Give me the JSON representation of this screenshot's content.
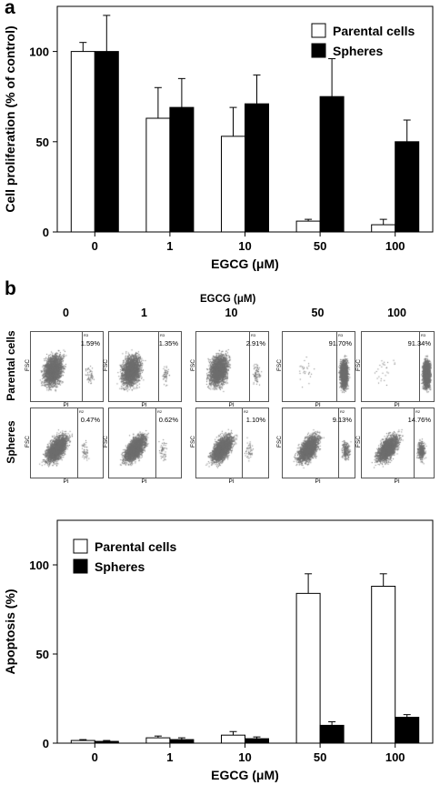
{
  "panels": {
    "a": "a",
    "b": "b"
  },
  "chart_data": [
    {
      "type": "bar",
      "panel": "a",
      "categories": [
        "0",
        "1",
        "10",
        "50",
        "100"
      ],
      "series": [
        {
          "name": "Parental cells",
          "values": [
            100,
            63,
            53,
            6,
            4
          ],
          "errors": [
            5,
            17,
            16,
            1,
            3
          ],
          "color": "#ffffff"
        },
        {
          "name": "Spheres",
          "values": [
            100,
            69,
            71,
            75,
            50
          ],
          "errors": [
            20,
            16,
            16,
            21,
            12
          ],
          "color": "#000000"
        }
      ],
      "xlabel": "EGCG (μM)",
      "ylabel": "Cell proliferation (% of control)",
      "ylim": [
        0,
        125
      ],
      "yticks": [
        "0",
        "50",
        "100"
      ],
      "legend": "top-right",
      "grid": false
    },
    {
      "type": "bar",
      "panel": "b-lower",
      "categories": [
        "0",
        "1",
        "10",
        "50",
        "100"
      ],
      "series": [
        {
          "name": "Parental cells",
          "values": [
            1.5,
            3,
            4.5,
            84,
            88
          ],
          "errors": [
            0.5,
            1,
            2,
            11,
            7
          ],
          "color": "#ffffff"
        },
        {
          "name": "Spheres",
          "values": [
            1,
            2,
            2.5,
            10,
            14.5
          ],
          "errors": [
            0.5,
            1,
            1,
            2,
            1.5
          ],
          "color": "#000000"
        }
      ],
      "xlabel": "EGCG (μM)",
      "ylabel": "Apoptosis (%)",
      "ylim": [
        0,
        125
      ],
      "yticks": [
        "0",
        "50",
        "100"
      ],
      "legend": "top-left",
      "grid": false
    }
  ],
  "flow": {
    "header": "EGCG (μM)",
    "concentrations": [
      "0",
      "1",
      "10",
      "50",
      "100"
    ],
    "rows": [
      {
        "label": "Parental cells",
        "percents": [
          "1.59%",
          "1.35%",
          "2.91%",
          "91.70%",
          "91.34%"
        ],
        "gate": "R3",
        "apoptotic_fraction": [
          0.0159,
          0.0135,
          0.0291,
          0.917,
          0.9134
        ]
      },
      {
        "label": "Spheres",
        "percents": [
          "0.47%",
          "0.62%",
          "1.10%",
          "9.13%",
          "14.76%"
        ],
        "gate": "R2",
        "apoptotic_fraction": [
          0.0047,
          0.0062,
          0.011,
          0.0913,
          0.1476
        ]
      }
    ],
    "x_axis": "PI",
    "y_axis": "FSC",
    "dot_color": "#6e6e6e"
  }
}
